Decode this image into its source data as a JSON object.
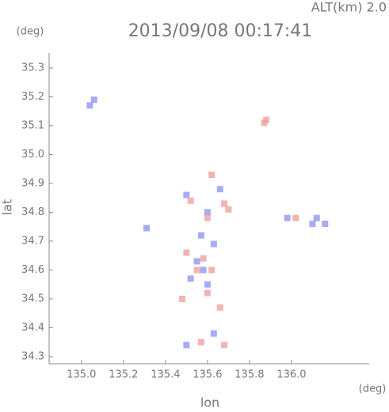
{
  "chart_data": {
    "type": "scatter",
    "title": "2013/09/08 00:17:41",
    "subtitle": "ALT(km) 2.0",
    "x_label": "lon",
    "y_label": "lat",
    "x_unit": "(deg)",
    "y_unit": "(deg)",
    "xlim": [
      134.846,
      136.37
    ],
    "ylim": [
      34.275,
      35.352
    ],
    "xticks": [
      {
        "value": 135,
        "label": "135.0"
      },
      135.2,
      135.4,
      135.6,
      135.8,
      {
        "value": 136,
        "label": "136.0"
      }
    ],
    "yticks": [
      34.3,
      34.4,
      34.5,
      34.6,
      34.7,
      34.8,
      34.9,
      {
        "value": 35,
        "label": "35.0"
      },
      35.1,
      35.2,
      35.3
    ],
    "series": [
      {
        "color": "#8a8ef0",
        "x": [
          135.06,
          135.04,
          135.31,
          135.5,
          135.6,
          135.57,
          135.63,
          135.58,
          135.52,
          135.6,
          135.63,
          135.5,
          136.1,
          136.12,
          136.16,
          135.98,
          135.66,
          135.55
        ],
        "y": [
          35.19,
          35.17,
          34.745,
          34.86,
          34.8,
          34.72,
          34.69,
          34.6,
          34.57,
          34.55,
          34.38,
          34.34,
          34.76,
          34.78,
          34.76,
          34.78,
          34.88,
          34.63
        ]
      },
      {
        "color": "#f09a9a",
        "x": [
          135.88,
          135.87,
          135.52,
          135.6,
          135.68,
          135.7,
          135.5,
          135.58,
          135.62,
          135.55,
          135.48,
          135.6,
          135.66,
          135.57,
          135.68,
          136.02,
          135.62
        ],
        "y": [
          35.12,
          35.11,
          34.84,
          34.78,
          34.83,
          34.81,
          34.66,
          34.64,
          34.6,
          34.6,
          34.5,
          34.52,
          34.47,
          34.35,
          34.34,
          34.78,
          34.93
        ]
      }
    ]
  }
}
